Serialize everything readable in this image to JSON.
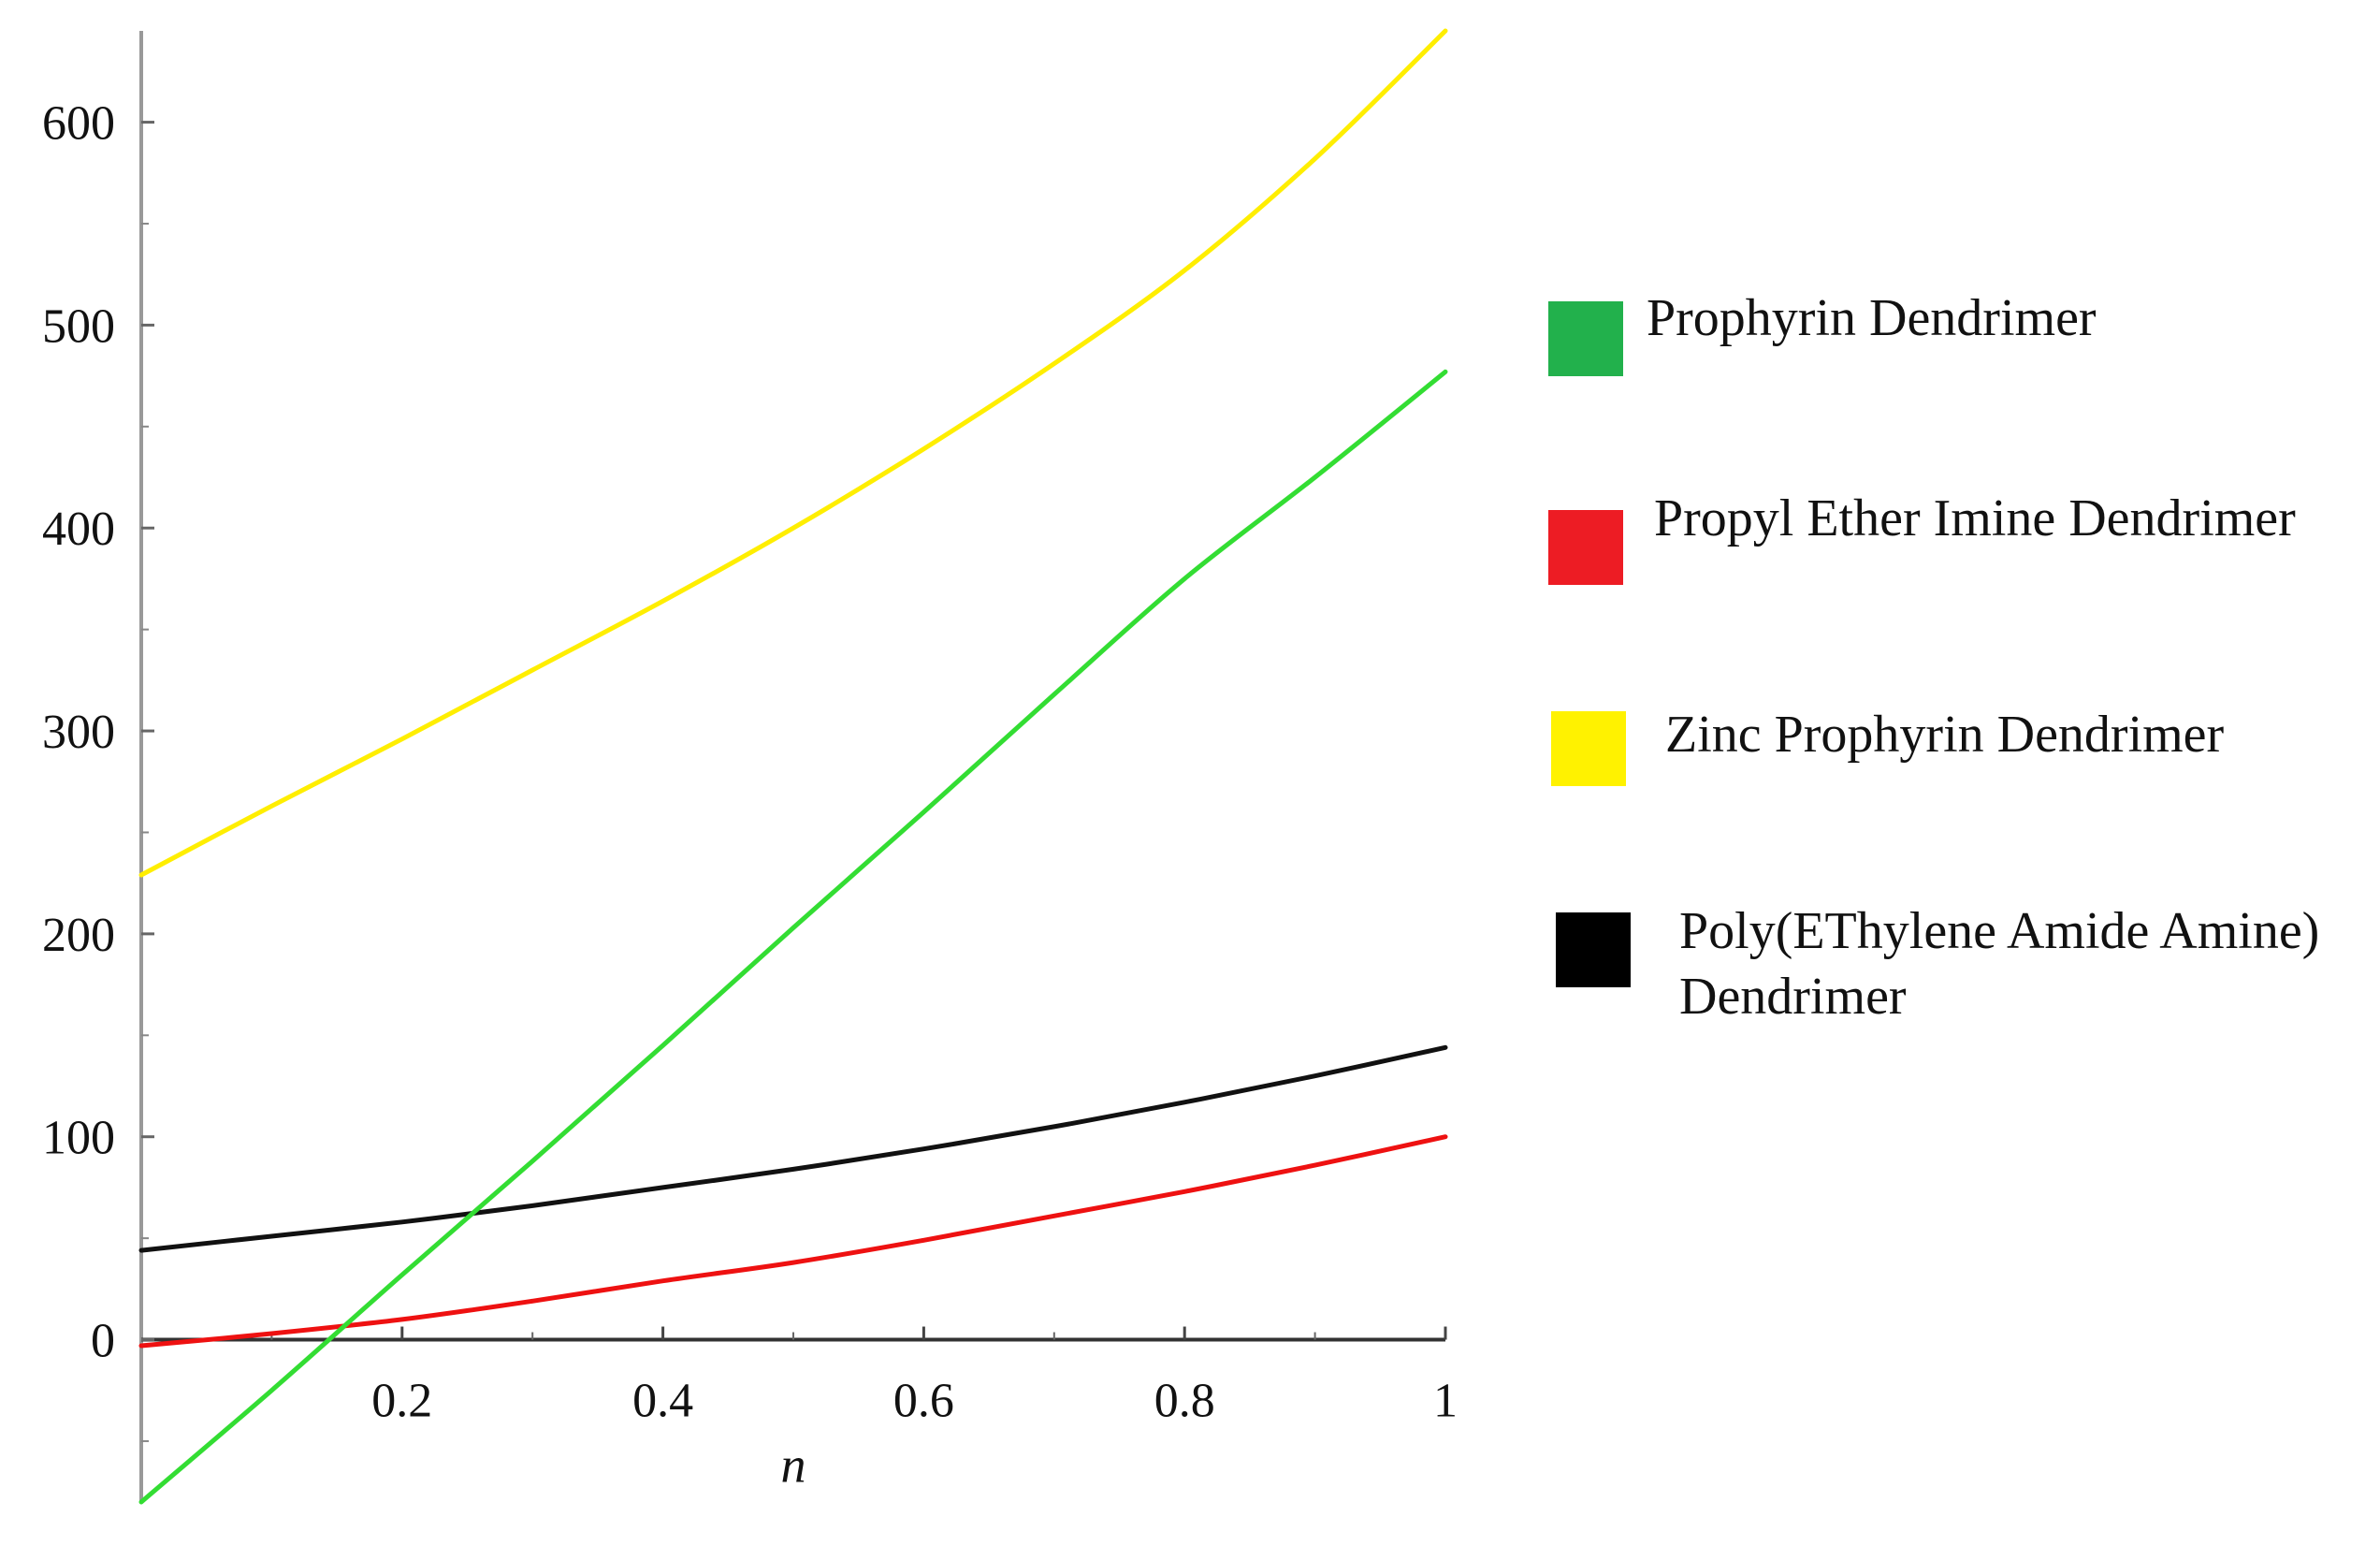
{
  "chart_data": {
    "type": "line",
    "title": "",
    "xlabel": "n",
    "ylabel": "",
    "xlim": [
      0,
      1
    ],
    "ylim": [
      -80,
      645
    ],
    "x_ticks": [
      0.2,
      0.4,
      0.6,
      0.8,
      1
    ],
    "x_tick_labels": [
      "0.2",
      "0.4",
      "0.6",
      "0.8",
      "1"
    ],
    "y_ticks": [
      0,
      100,
      200,
      300,
      400,
      500,
      600
    ],
    "y_tick_labels": [
      "0",
      "100",
      "200",
      "300",
      "400",
      "500",
      "600"
    ],
    "grid": false,
    "legend_placement": "right",
    "x": [
      0,
      0.1,
      0.2,
      0.3,
      0.4,
      0.5,
      0.6,
      0.7,
      0.8,
      0.9,
      1.0
    ],
    "series": [
      {
        "name": "Prophyrin Dendrimer",
        "color": "#22b14c",
        "line_color": "#33dd33",
        "values": [
          -80,
          -25,
          32,
          88,
          145,
          203,
          260,
          318,
          375,
          425,
          477
        ]
      },
      {
        "name": "Propyl Ether Imine Dendrimer",
        "color": "#ed1c24",
        "line_color": "#ee1111",
        "values": [
          -3,
          3,
          10,
          19,
          29,
          38,
          49,
          61,
          73,
          86,
          100
        ]
      },
      {
        "name": "Zinc Prophyrin Dendrimer",
        "color": "#fff200",
        "line_color": "#ffee00",
        "values": [
          229,
          263,
          296,
          330,
          364,
          400,
          439,
          481,
          527,
          582,
          645
        ]
      },
      {
        "name": [
          "Poly(EThylene Amide Amine)",
          "Dendrimer"
        ],
        "color": "#000000",
        "line_color": "#111111",
        "values": [
          44,
          51,
          58,
          66,
          75,
          84,
          94,
          105,
          117,
          130,
          144
        ]
      }
    ]
  }
}
